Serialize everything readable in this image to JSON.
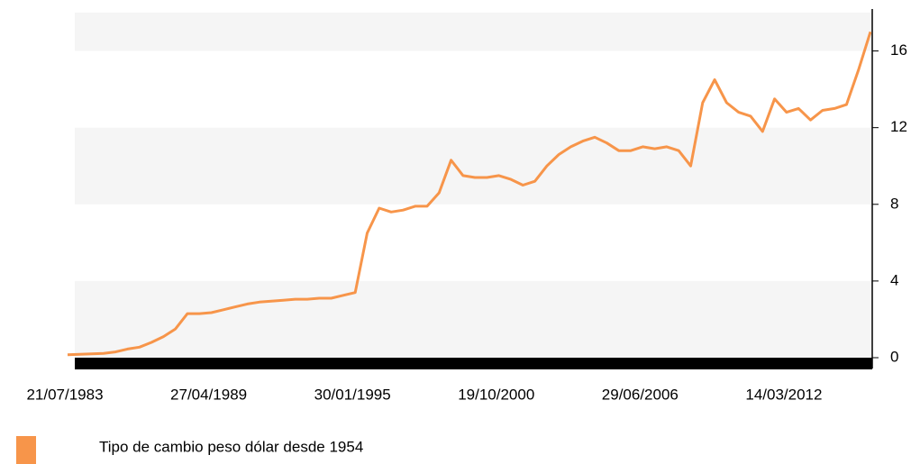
{
  "chart_data": {
    "type": "line",
    "categories": [
      "21/07/1983",
      null,
      null,
      null,
      null,
      null,
      null,
      null,
      null,
      null,
      null,
      null,
      "27/04/1989",
      null,
      null,
      null,
      null,
      null,
      null,
      null,
      null,
      null,
      null,
      null,
      "30/01/1995",
      null,
      null,
      null,
      null,
      null,
      null,
      null,
      null,
      null,
      null,
      null,
      "19/10/2000",
      null,
      null,
      null,
      null,
      null,
      null,
      null,
      null,
      null,
      null,
      null,
      "29/06/2006",
      null,
      null,
      null,
      null,
      null,
      null,
      null,
      null,
      null,
      null,
      null,
      "14/03/2012",
      null,
      null,
      null,
      null,
      null,
      null,
      null
    ],
    "series": [
      {
        "name": "Tipo de cambio peso dólar desde 1954",
        "color": "#f7954a",
        "values": [
          0.15,
          0.18,
          0.2,
          0.22,
          0.3,
          0.45,
          0.55,
          0.8,
          1.1,
          1.5,
          2.3,
          2.3,
          2.35,
          2.5,
          2.65,
          2.8,
          2.9,
          2.95,
          3.0,
          3.05,
          3.05,
          3.1,
          3.1,
          3.25,
          3.4,
          6.5,
          7.8,
          7.6,
          7.7,
          7.9,
          7.9,
          8.6,
          10.3,
          9.5,
          9.4,
          9.4,
          9.5,
          9.3,
          9.0,
          9.2,
          10.0,
          10.6,
          11.0,
          11.3,
          11.5,
          11.2,
          10.8,
          10.8,
          11.0,
          10.9,
          11.0,
          10.8,
          10.0,
          13.3,
          14.5,
          13.3,
          12.8,
          12.6,
          11.8,
          13.5,
          12.8,
          13.0,
          12.4,
          12.9,
          13.0,
          13.2,
          15.0,
          17.0
        ]
      }
    ],
    "ylim": [
      0,
      18
    ],
    "yticks": [
      0,
      4,
      8,
      12,
      16
    ],
    "grid": true
  }
}
